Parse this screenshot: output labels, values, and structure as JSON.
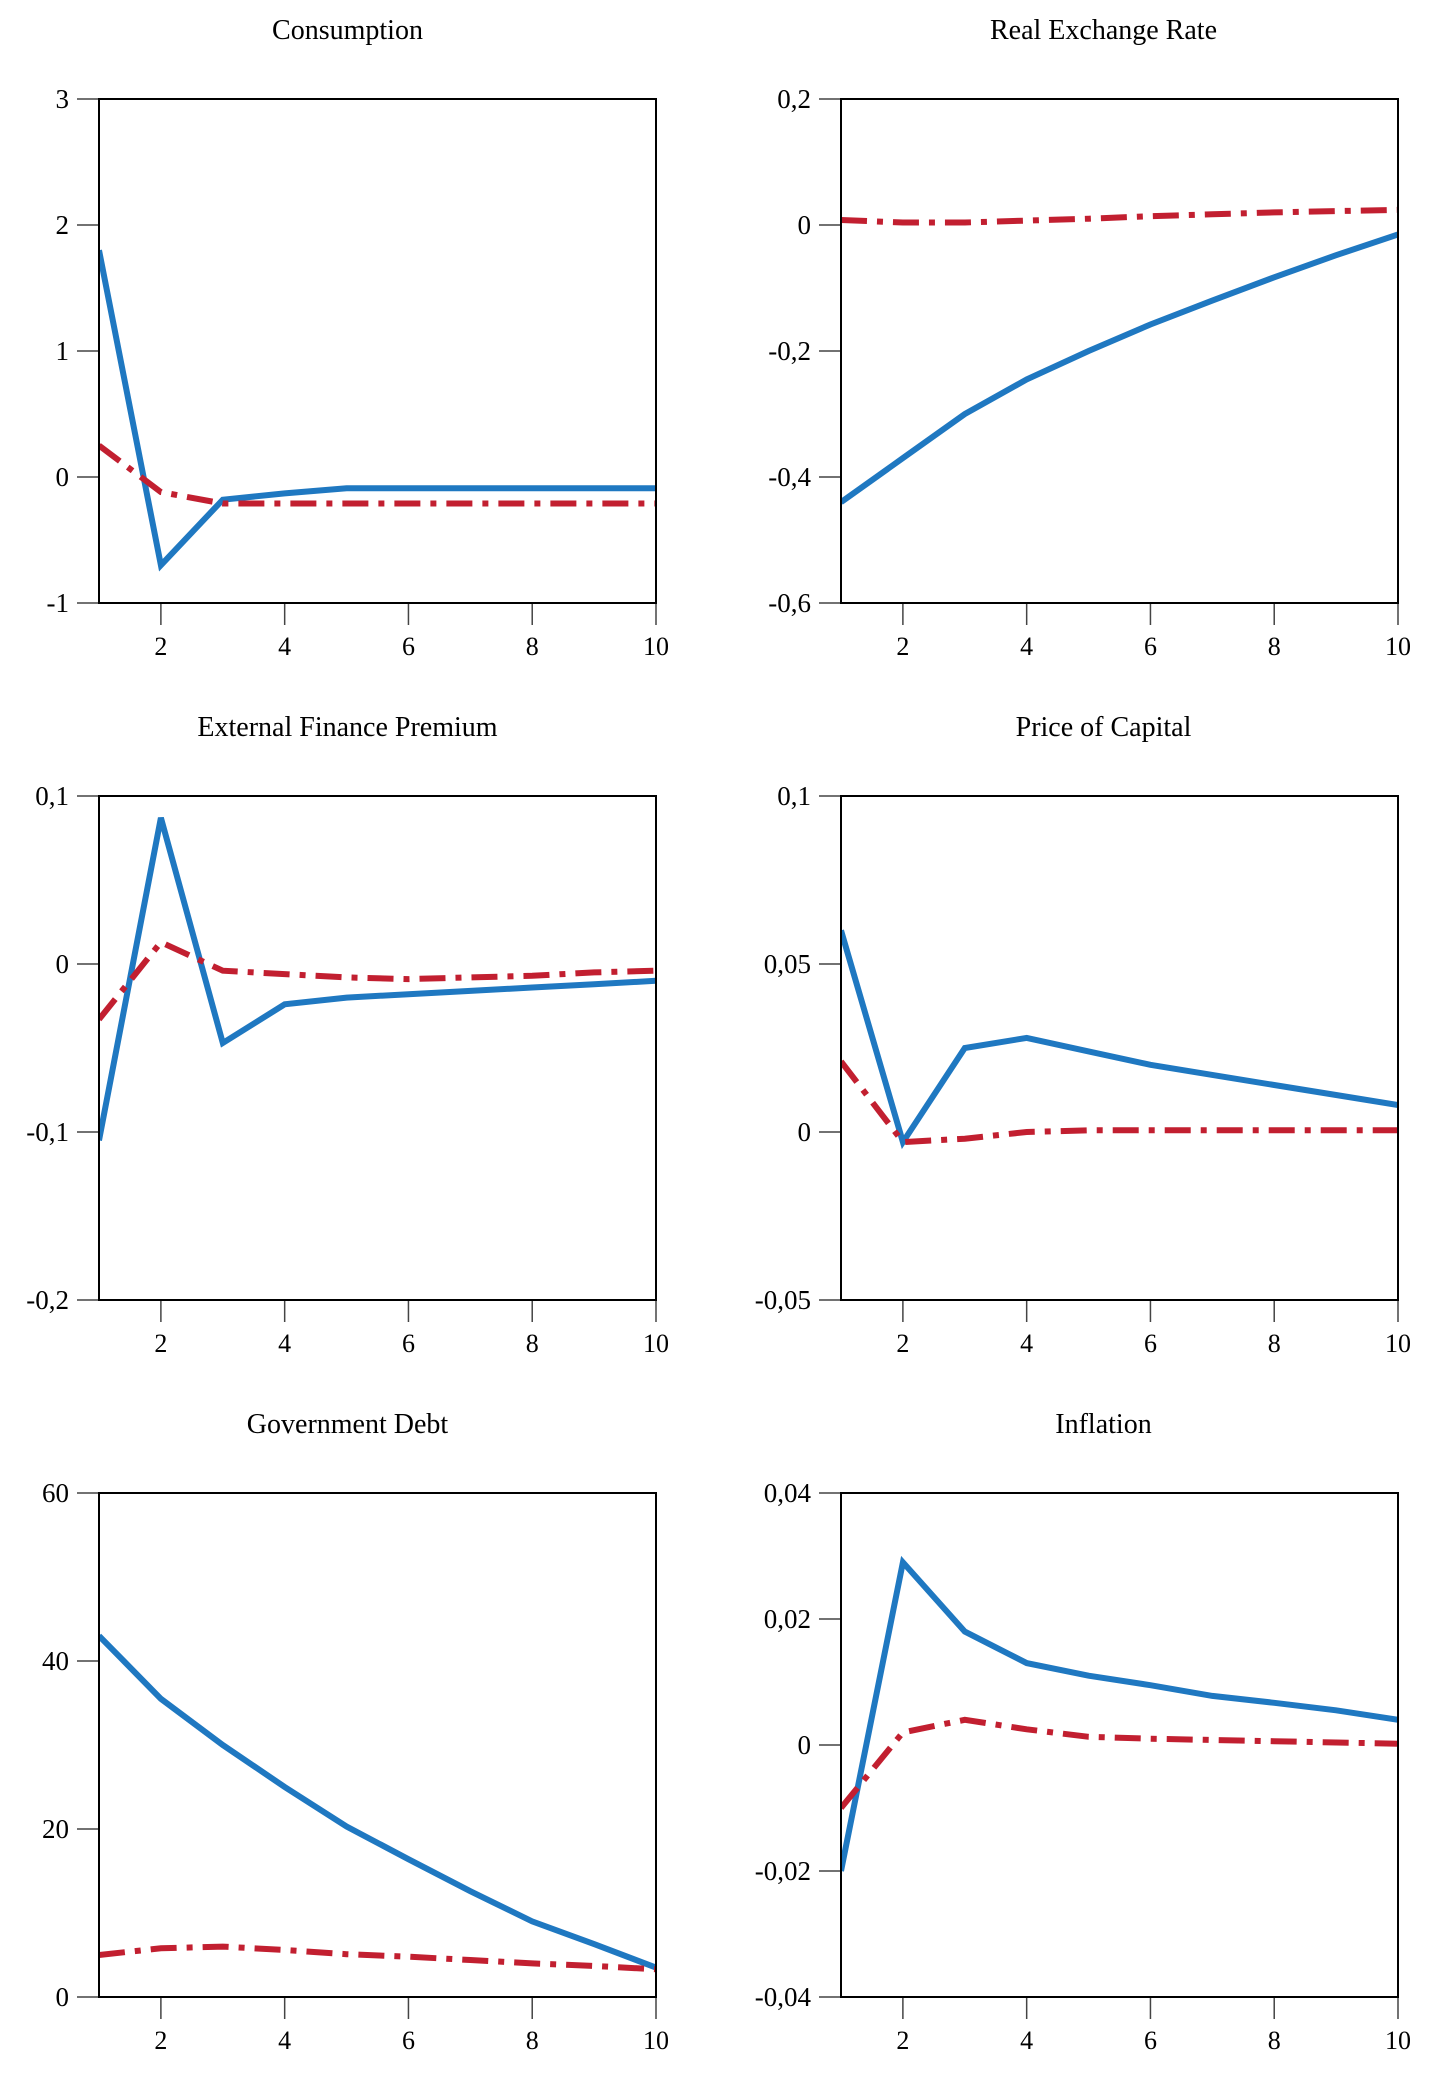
{
  "colors": {
    "series_a": "#1f78c1",
    "series_b": "#c21f30",
    "axis": "#000000"
  },
  "chart_data": [
    {
      "type": "line",
      "title": "Consumption",
      "xlim": [
        1,
        10
      ],
      "ylim": [
        -1,
        3
      ],
      "xticks": [
        2,
        4,
        6,
        8,
        10
      ],
      "xtick_labels": [
        "2",
        "4",
        "6",
        "8",
        "10"
      ],
      "yticks": [
        3,
        2,
        1,
        0,
        -1
      ],
      "ytick_labels": [
        "3",
        "2",
        "1",
        "0",
        "-1"
      ],
      "grid": false,
      "x": [
        1,
        2,
        3,
        4,
        5,
        6,
        7,
        8,
        9,
        10
      ],
      "series": [
        {
          "style": "solid",
          "values": [
            1.8,
            -0.7,
            -0.18,
            -0.13,
            -0.09,
            -0.09,
            -0.09,
            -0.09,
            -0.09,
            -0.09
          ]
        },
        {
          "style": "dash-dot",
          "values": [
            0.25,
            -0.12,
            -0.21,
            -0.21,
            -0.21,
            -0.21,
            -0.21,
            -0.21,
            -0.21,
            -0.21
          ]
        }
      ]
    },
    {
      "type": "line",
      "title": "Real Exchange Rate",
      "xlim": [
        1,
        10
      ],
      "ylim": [
        -0.6,
        0.2
      ],
      "xticks": [
        2,
        4,
        6,
        8,
        10
      ],
      "xtick_labels": [
        "2",
        "4",
        "6",
        "8",
        "10"
      ],
      "yticks": [
        0.2,
        0,
        -0.2,
        -0.4,
        -0.6
      ],
      "ytick_labels": [
        "0,2",
        "0",
        "-0,2",
        "-0,4",
        "-0,6"
      ],
      "grid": false,
      "x": [
        1,
        2,
        3,
        4,
        5,
        6,
        7,
        8,
        9,
        10
      ],
      "series": [
        {
          "style": "solid",
          "values": [
            -0.44,
            -0.37,
            -0.3,
            -0.245,
            -0.2,
            -0.158,
            -0.12,
            -0.083,
            -0.048,
            -0.015
          ]
        },
        {
          "style": "dash-dot",
          "values": [
            0.008,
            0.004,
            0.004,
            0.007,
            0.01,
            0.014,
            0.017,
            0.02,
            0.022,
            0.024
          ]
        }
      ]
    },
    {
      "type": "line",
      "title": "External Finance Premium",
      "xlim": [
        1,
        10
      ],
      "ylim": [
        -0.2,
        0.1
      ],
      "xticks": [
        2,
        4,
        6,
        8,
        10
      ],
      "xtick_labels": [
        "2",
        "4",
        "6",
        "8",
        "10"
      ],
      "yticks": [
        0.1,
        0,
        -0.1,
        -0.2
      ],
      "ytick_labels": [
        "0,1",
        "0",
        "-0,1",
        "-0,2"
      ],
      "grid": false,
      "x": [
        1,
        2,
        3,
        4,
        5,
        6,
        7,
        8,
        9,
        10
      ],
      "series": [
        {
          "style": "solid",
          "values": [
            -0.105,
            0.087,
            -0.047,
            -0.024,
            -0.02,
            -0.018,
            -0.016,
            -0.014,
            -0.012,
            -0.01
          ]
        },
        {
          "style": "dash-dot",
          "values": [
            -0.033,
            0.013,
            -0.004,
            -0.006,
            -0.008,
            -0.009,
            -0.008,
            -0.007,
            -0.005,
            -0.004
          ]
        }
      ]
    },
    {
      "type": "line",
      "title": "Price of Capital",
      "xlim": [
        1,
        10
      ],
      "ylim": [
        -0.05,
        0.1
      ],
      "xticks": [
        2,
        4,
        6,
        8,
        10
      ],
      "xtick_labels": [
        "2",
        "4",
        "6",
        "8",
        "10"
      ],
      "yticks": [
        0.1,
        0.05,
        0,
        -0.05
      ],
      "ytick_labels": [
        "0,1",
        "0,05",
        "0",
        "-0,05"
      ],
      "grid": false,
      "x": [
        1,
        2,
        3,
        4,
        5,
        6,
        7,
        8,
        9,
        10
      ],
      "series": [
        {
          "style": "solid",
          "values": [
            0.06,
            -0.003,
            0.025,
            0.028,
            0.024,
            0.02,
            0.017,
            0.014,
            0.011,
            0.008
          ]
        },
        {
          "style": "dash-dot",
          "values": [
            0.021,
            -0.003,
            -0.002,
            0,
            0.0005,
            0.0005,
            0.0005,
            0.0005,
            0.0005,
            0.0005
          ]
        }
      ]
    },
    {
      "type": "line",
      "title": "Government Debt",
      "xlim": [
        1,
        10
      ],
      "ylim": [
        0,
        60
      ],
      "xticks": [
        2,
        4,
        6,
        8,
        10
      ],
      "xtick_labels": [
        "2",
        "4",
        "6",
        "8",
        "10"
      ],
      "yticks": [
        60,
        40,
        20,
        0
      ],
      "ytick_labels": [
        "60",
        "40",
        "20",
        "0"
      ],
      "grid": false,
      "x": [
        1,
        2,
        3,
        4,
        5,
        6,
        7,
        8,
        9,
        10
      ],
      "series": [
        {
          "style": "solid",
          "values": [
            43,
            35.5,
            30,
            25,
            20.3,
            16.4,
            12.6,
            9,
            6.3,
            3.5
          ]
        },
        {
          "style": "dash-dot",
          "values": [
            5,
            5.8,
            6,
            5.6,
            5.1,
            4.8,
            4.4,
            4.0,
            3.7,
            3.3
          ]
        }
      ]
    },
    {
      "type": "line",
      "title": "Inflation",
      "xlim": [
        1,
        10
      ],
      "ylim": [
        -0.04,
        0.04
      ],
      "xticks": [
        2,
        4,
        6,
        8,
        10
      ],
      "xtick_labels": [
        "2",
        "4",
        "6",
        "8",
        "10"
      ],
      "yticks": [
        0.04,
        0.02,
        0,
        -0.02,
        -0.04
      ],
      "ytick_labels": [
        "0,04",
        "0,02",
        "0",
        "-0,02",
        "-0,04"
      ],
      "grid": false,
      "x": [
        1,
        2,
        3,
        4,
        5,
        6,
        7,
        8,
        9,
        10
      ],
      "series": [
        {
          "style": "solid",
          "values": [
            -0.02,
            0.029,
            0.018,
            0.013,
            0.011,
            0.0095,
            0.0078,
            0.0067,
            0.0055,
            0.004
          ]
        },
        {
          "style": "dash-dot",
          "values": [
            -0.01,
            0.002,
            0.004,
            0.0025,
            0.0013,
            0.001,
            0.0008,
            0.0006,
            0.0004,
            0.0002
          ]
        }
      ]
    }
  ]
}
